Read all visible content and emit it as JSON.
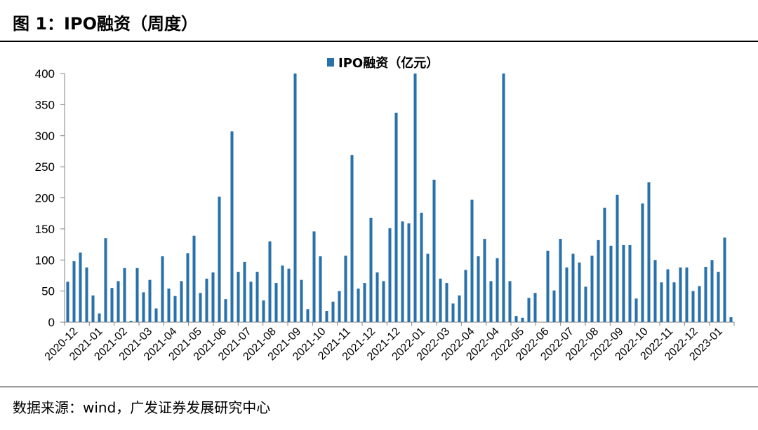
{
  "figure": {
    "title": "图 1：IPO融资（周度）",
    "source": "数据来源：wind，广发证券发展研究中心"
  },
  "colors": {
    "bar": "#2871aa",
    "axis": "#808080"
  },
  "chart_data": {
    "type": "bar",
    "title": "",
    "xlabel": "",
    "ylabel": "",
    "ylim": [
      0,
      400
    ],
    "yticks": [
      0,
      50,
      100,
      150,
      200,
      250,
      300,
      350,
      400
    ],
    "grid": false,
    "legend_position": "top-center",
    "x_tick_labels": [
      "2020-12",
      "2021-01",
      "2021-02",
      "2021-03",
      "2021-04",
      "2021-05",
      "2021-06",
      "2021-07",
      "2021-08",
      "2021-09",
      "2021-10",
      "2021-11",
      "2021-12",
      "2021-12",
      "2022-01",
      "2022-03",
      "2022-04",
      "2022-04",
      "2022-05",
      "2022-06",
      "2022-07",
      "2022-08",
      "2022-09",
      "2022-10",
      "2022-11",
      "2022-12",
      "2023-01"
    ],
    "series": [
      {
        "name": "IPO融资（亿元）",
        "values": [
          65,
          98,
          112,
          88,
          43,
          14,
          135,
          55,
          66,
          87,
          2,
          87,
          48,
          68,
          22,
          106,
          54,
          42,
          66,
          111,
          139,
          47,
          70,
          80,
          202,
          37,
          307,
          81,
          97,
          65,
          81,
          35,
          130,
          63,
          91,
          86,
          400,
          68,
          21,
          146,
          106,
          18,
          33,
          50,
          107,
          269,
          54,
          63,
          168,
          80,
          66,
          151,
          337,
          162,
          159,
          400,
          176,
          110,
          229,
          70,
          63,
          30,
          43,
          84,
          197,
          106,
          134,
          66,
          103,
          400,
          66,
          10,
          7,
          39,
          47,
          0,
          115,
          51,
          134,
          88,
          110,
          96,
          57,
          107,
          132,
          184,
          123,
          205,
          124,
          124,
          38,
          191,
          225,
          100,
          64,
          85,
          64,
          88,
          88,
          50,
          58,
          89,
          100,
          81,
          136,
          8
        ]
      }
    ]
  }
}
